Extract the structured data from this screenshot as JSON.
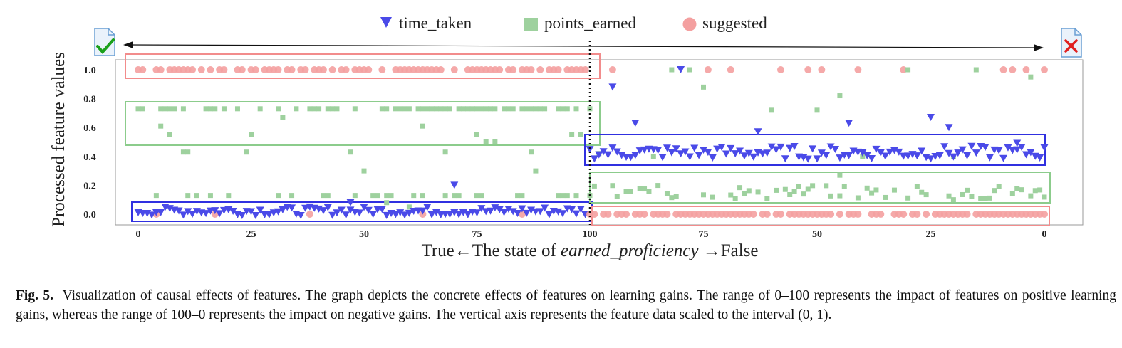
{
  "chart_data": {
    "type": "scatter",
    "xlabel_left": "True←The state of ",
    "xlabel_italic": "earned_proficiency",
    "xlabel_right": " →False",
    "ylabel": "Processed feature values",
    "ylim": [
      0,
      1
    ],
    "yticks": [
      "0.0",
      "0.2",
      "0.4",
      "0.6",
      "0.8",
      "1.0"
    ],
    "xticks_left": [
      "0",
      "25",
      "50",
      "75",
      "100"
    ],
    "xticks_right": [
      "75",
      "50",
      "25",
      "0"
    ],
    "xlim_left": [
      0,
      100
    ],
    "xlim_right": [
      100,
      0
    ],
    "series": [
      {
        "name": "time_taken",
        "marker": "triangle-down",
        "color": "#4a4ae8"
      },
      {
        "name": "points_earned",
        "marker": "square",
        "color": "#9ed19e"
      },
      {
        "name": "suggested",
        "marker": "circle",
        "color": "#f4a0a0"
      }
    ],
    "left_half": {
      "time_taken": {
        "typical": 0.0,
        "range": [
          -0.01,
          0.05
        ],
        "outliers": [
          [
            70,
            0.2
          ],
          [
            47,
            0.08
          ]
        ]
      },
      "points_earned": {
        "clusters": [
          0.73,
          0.13
        ],
        "other_values": [
          0.61,
          0.55,
          0.43,
          0.67,
          0.3,
          0.5,
          0.44,
          0.56
        ]
      },
      "suggested": {
        "typical": 1.0,
        "near_zero_hits": [
          4,
          17,
          38,
          63,
          85
        ]
      }
    },
    "right_half": {
      "time_taken": {
        "typical": 0.4,
        "range": [
          0.38,
          0.47
        ],
        "outliers": [
          [
            95,
            0.88
          ],
          [
            90,
            0.63
          ],
          [
            80,
            1.0
          ],
          [
            63,
            0.57
          ],
          [
            43,
            0.63
          ],
          [
            25,
            0.67
          ],
          [
            21,
            0.6
          ],
          [
            6,
            0.49
          ]
        ]
      },
      "points_earned": {
        "typical": 0.13,
        "range": [
          0.1,
          0.2
        ],
        "outliers": [
          [
            82,
            1.0
          ],
          [
            78,
            1.0
          ],
          [
            75,
            0.88
          ],
          [
            60,
            0.72
          ],
          [
            50,
            0.72
          ],
          [
            45,
            0.82
          ],
          [
            30,
            1.0
          ],
          [
            15,
            1.0
          ],
          [
            3,
            0.95
          ],
          [
            45,
            0.27
          ]
        ]
      },
      "suggested": {
        "typical": 0.0,
        "high_values": [
          95,
          74,
          69,
          58,
          52,
          49,
          41,
          31,
          9,
          7,
          4,
          0
        ]
      }
    },
    "highlight_boxes": [
      "red box around left suggested at 1.0",
      "green box around left points_earned at 0.73",
      "blue box around left time_taken at 0.0",
      "blue box around right time_taken at 0.4",
      "green box around right points_earned at 0.13",
      "red box around right suggested at 0.0"
    ],
    "divider": "dotted vertical line at 100"
  },
  "caption": {
    "label": "Fig. 5.",
    "text": "Visualization of causal effects of features. The graph depicts the concrete effects of features on learning gains. The range of 0–100 represents the impact of features on positive learning gains, whereas the range of 100–0 represents the impact on negative gains. The vertical axis represents the feature data scaled to the interval (0, 1)."
  },
  "icons": {
    "left": "document-check-icon",
    "right": "document-cross-icon"
  }
}
